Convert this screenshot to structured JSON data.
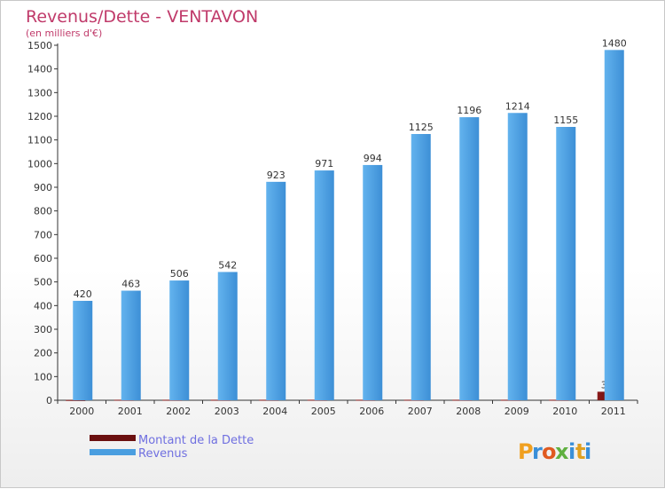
{
  "chart_data": {
    "type": "bar",
    "title": "Revenus/Dette - VENTAVON",
    "subtitle": "(en milliers d'€)",
    "xlabel": "",
    "ylabel": "",
    "categories": [
      "2000",
      "2001",
      "2002",
      "2003",
      "2004",
      "2005",
      "2006",
      "2007",
      "2008",
      "2009",
      "2010",
      "2011"
    ],
    "series": [
      {
        "name": "Montant de la Dette",
        "color": "#6b1010",
        "values": [
          1,
          2,
          2,
          2,
          2,
          2,
          2,
          2,
          2,
          2,
          2,
          36
        ]
      },
      {
        "name": "Revenus",
        "color": "#4a9ee0",
        "values": [
          420,
          463,
          506,
          542,
          923,
          971,
          994,
          1125,
          1196,
          1214,
          1155,
          1480
        ]
      }
    ],
    "ylim": [
      0,
      1500
    ],
    "yticks": [
      "0",
      "100",
      "200",
      "300",
      "400",
      "500",
      "600",
      "700",
      "800",
      "900",
      "1000",
      "1100",
      "1200",
      "1300",
      "1400",
      "1500"
    ],
    "grid": false,
    "legend": "bottom-left"
  },
  "watermark": {
    "text": "Proxiti",
    "icon": "proxiti-logo-icon"
  }
}
